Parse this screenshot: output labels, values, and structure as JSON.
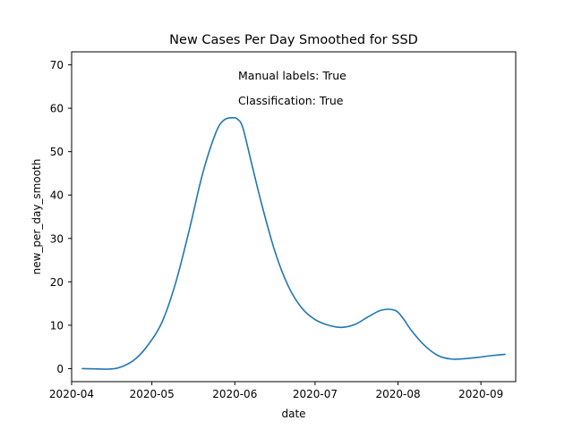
{
  "chart_data": {
    "type": "line",
    "title": "New Cases Per Day Smoothed for SSD",
    "xlabel": "date",
    "ylabel": "new_per_day_smooth",
    "ylim": [
      -3,
      73
    ],
    "xlim": [
      "2020-04-01",
      "2020-09-14"
    ],
    "grid": false,
    "x_ticks": [
      "2020-04-01",
      "2020-05-01",
      "2020-06-01",
      "2020-07-01",
      "2020-08-01",
      "2020-09-01"
    ],
    "x_tick_labels": [
      "2020-04",
      "2020-05",
      "2020-06",
      "2020-07",
      "2020-08",
      "2020-09"
    ],
    "y_ticks": [
      0,
      10,
      20,
      30,
      40,
      50,
      60,
      70
    ],
    "annotations": [
      "Manual labels: True",
      "Classification: True"
    ],
    "series": [
      {
        "color": "#1f77b4",
        "x": [
          "2020-04-05",
          "2020-04-15",
          "2020-04-20",
          "2020-04-25",
          "2020-04-30",
          "2020-05-05",
          "2020-05-10",
          "2020-05-15",
          "2020-05-20",
          "2020-05-25",
          "2020-05-28",
          "2020-05-31",
          "2020-06-02",
          "2020-06-04",
          "2020-06-07",
          "2020-06-11",
          "2020-06-16",
          "2020-06-21",
          "2020-06-26",
          "2020-07-01",
          "2020-07-06",
          "2020-07-11",
          "2020-07-16",
          "2020-07-21",
          "2020-07-26",
          "2020-07-31",
          "2020-08-03",
          "2020-08-06",
          "2020-08-11",
          "2020-08-16",
          "2020-08-21",
          "2020-08-26",
          "2020-08-31",
          "2020-09-05",
          "2020-09-10"
        ],
        "y": [
          0,
          -0.1,
          0.5,
          2.3,
          5.8,
          11,
          20,
          32,
          45,
          54.5,
          57.3,
          57.8,
          57.5,
          55.5,
          48,
          38,
          27,
          19,
          14,
          11.3,
          10,
          9.5,
          10.2,
          12,
          13.5,
          13.4,
          11.5,
          8.8,
          5.3,
          3,
          2.2,
          2.3,
          2.6,
          3,
          3.3
        ]
      }
    ]
  }
}
